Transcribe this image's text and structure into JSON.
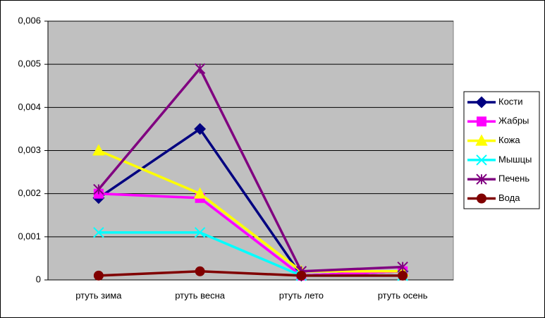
{
  "chart_data": {
    "type": "line",
    "categories": [
      "ртуть зима",
      "ртуть весна",
      "ртуть лето",
      "ртуть осень"
    ],
    "series": [
      {
        "name": "Кости",
        "color": "#000080",
        "marker": "diamond",
        "values": [
          0.0019,
          0.0035,
          0.0001,
          0.0002
        ]
      },
      {
        "name": "Жабры",
        "color": "#ff00ff",
        "marker": "square",
        "values": [
          0.002,
          0.0019,
          0.0001,
          0.0002
        ]
      },
      {
        "name": "Кожа",
        "color": "#ffff00",
        "marker": "triangle",
        "values": [
          0.003,
          0.002,
          0.0002,
          0.0002
        ]
      },
      {
        "name": "Мышцы",
        "color": "#00ffff",
        "marker": "x",
        "values": [
          0.0011,
          0.0011,
          0.0001,
          0.0001
        ]
      },
      {
        "name": "Печень",
        "color": "#800080",
        "marker": "star",
        "values": [
          0.0021,
          0.0049,
          0.0002,
          0.0003
        ]
      },
      {
        "name": "Вода",
        "color": "#800000",
        "marker": "circle",
        "values": [
          0.0001,
          0.0002,
          0.0001,
          0.0001
        ]
      }
    ],
    "ylim": [
      0,
      0.006
    ],
    "yticks": [
      0,
      {
        "value": 0.001,
        "label": "0,001"
      },
      {
        "value": 0.002,
        "label": "0,002"
      },
      {
        "value": 0.003,
        "label": "0,003"
      },
      {
        "value": 0.004,
        "label": "0,004"
      },
      {
        "value": 0.005,
        "label": "0,005"
      },
      {
        "value": 0.006,
        "label": "0,006"
      }
    ],
    "grid": true,
    "legend": "right",
    "plot_background": "#c0c0c0"
  }
}
